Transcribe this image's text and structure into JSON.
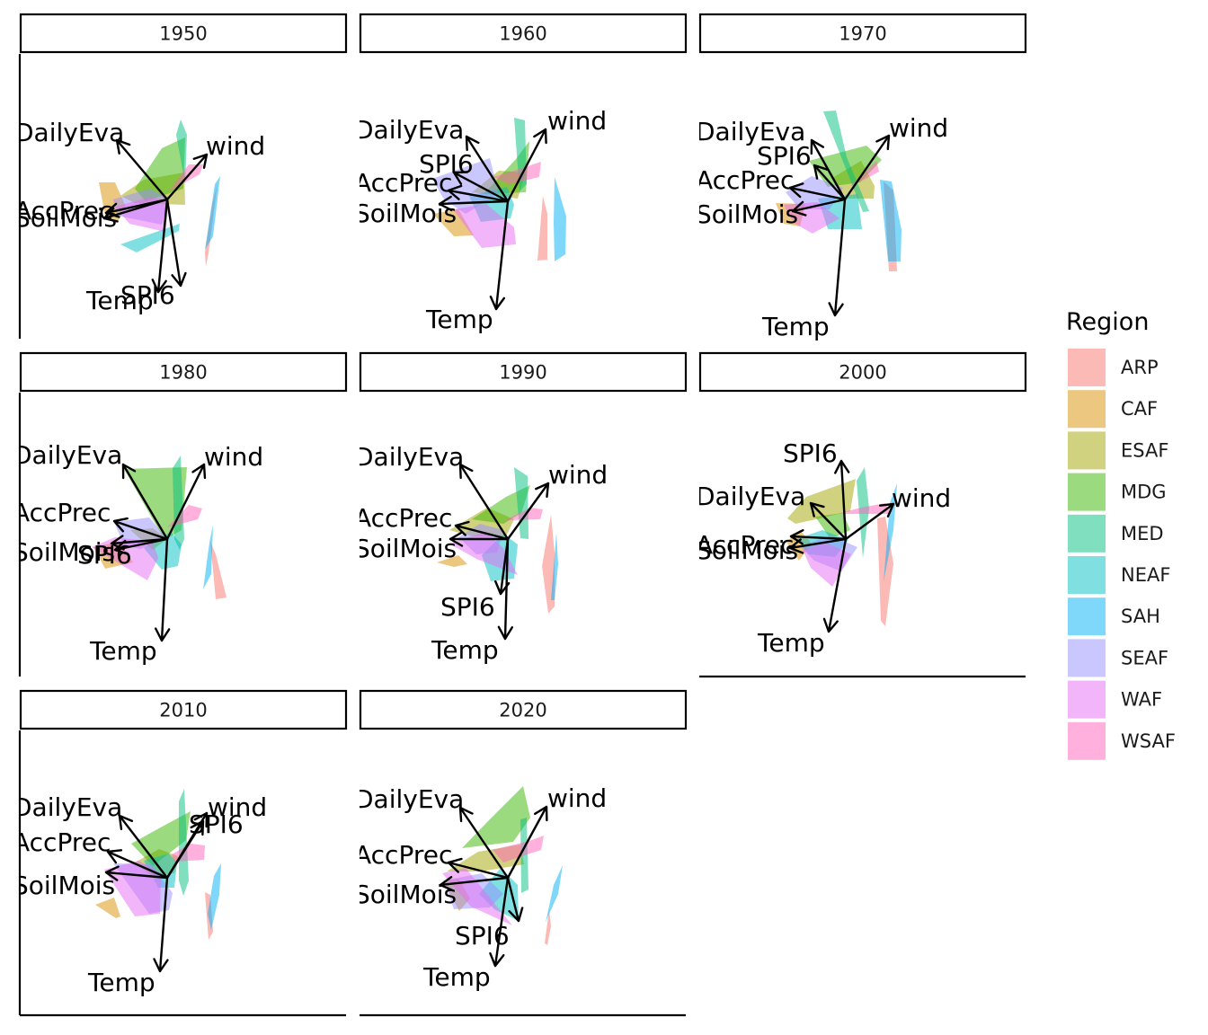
{
  "chart_data": {
    "type": "biplot",
    "facet_by": "decade",
    "panels": [
      {
        "label": "1950"
      },
      {
        "label": "1960"
      },
      {
        "label": "1970"
      },
      {
        "label": "1980"
      },
      {
        "label": "1990"
      },
      {
        "label": "2000"
      },
      {
        "label": "2010"
      },
      {
        "label": "2020"
      }
    ],
    "variables": [
      "DailyEva",
      "wind",
      "AccPrec",
      "SoilMois",
      "SPI6",
      "Temp"
    ],
    "legend": {
      "title": "Region",
      "position": "right",
      "items": [
        {
          "name": "ARP",
          "color": "#F8766D"
        },
        {
          "name": "CAF",
          "color": "#D89000"
        },
        {
          "name": "ESAF",
          "color": "#A3A500"
        },
        {
          "name": "MDG",
          "color": "#39B600"
        },
        {
          "name": "MED",
          "color": "#00BF7D"
        },
        {
          "name": "NEAF",
          "color": "#00BFC4"
        },
        {
          "name": "SAH",
          "color": "#00B0F6"
        },
        {
          "name": "SEAF",
          "color": "#9590FF"
        },
        {
          "name": "WAF",
          "color": "#E76BF3"
        },
        {
          "name": "WSAF",
          "color": "#FF62BC"
        }
      ]
    }
  }
}
